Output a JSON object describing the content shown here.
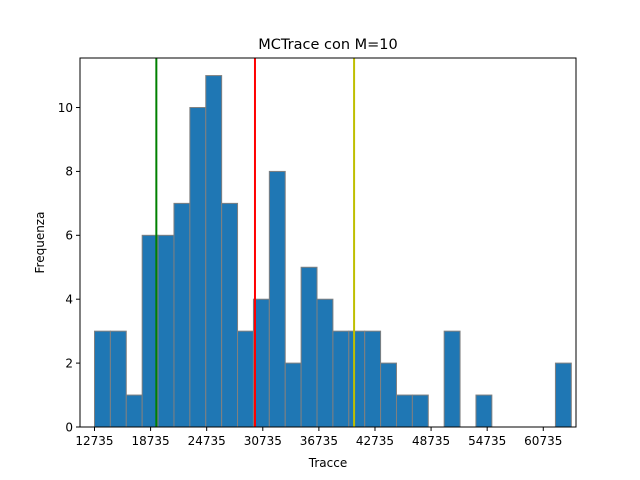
{
  "chart_data": {
    "type": "bar",
    "title": "MCTrace con M=10",
    "xlabel": "Tracce",
    "ylabel": "Frequenza",
    "bin_start": 12735,
    "bin_width": 1700,
    "values": [
      3,
      3,
      1,
      6,
      6,
      7,
      10,
      11,
      7,
      3,
      4,
      8,
      2,
      5,
      4,
      3,
      3,
      3,
      2,
      1,
      1,
      0,
      3,
      0,
      1,
      0,
      0,
      0,
      0,
      2
    ],
    "xlim": [
      11185,
      64235
    ],
    "ylim": [
      0,
      11.55
    ],
    "x_ticks": [
      12735,
      18735,
      24735,
      30735,
      36735,
      42735,
      48735,
      54735,
      60735
    ],
    "x_tick_labels": [
      "12735",
      "18735",
      "24735",
      "30735",
      "36735",
      "42735",
      "48735",
      "54735",
      "60735"
    ],
    "y_ticks": [
      0,
      2,
      4,
      6,
      8,
      10
    ],
    "y_tick_labels": [
      "0",
      "2",
      "4",
      "6",
      "8",
      "10"
    ],
    "vlines": [
      {
        "x": 19350,
        "color": "#008000"
      },
      {
        "x": 29900,
        "color": "#ff0000"
      },
      {
        "x": 40500,
        "color": "#bfbf00"
      }
    ],
    "bar_color": "#1f77b4",
    "bar_edge_color": "#808080",
    "grid": false
  }
}
